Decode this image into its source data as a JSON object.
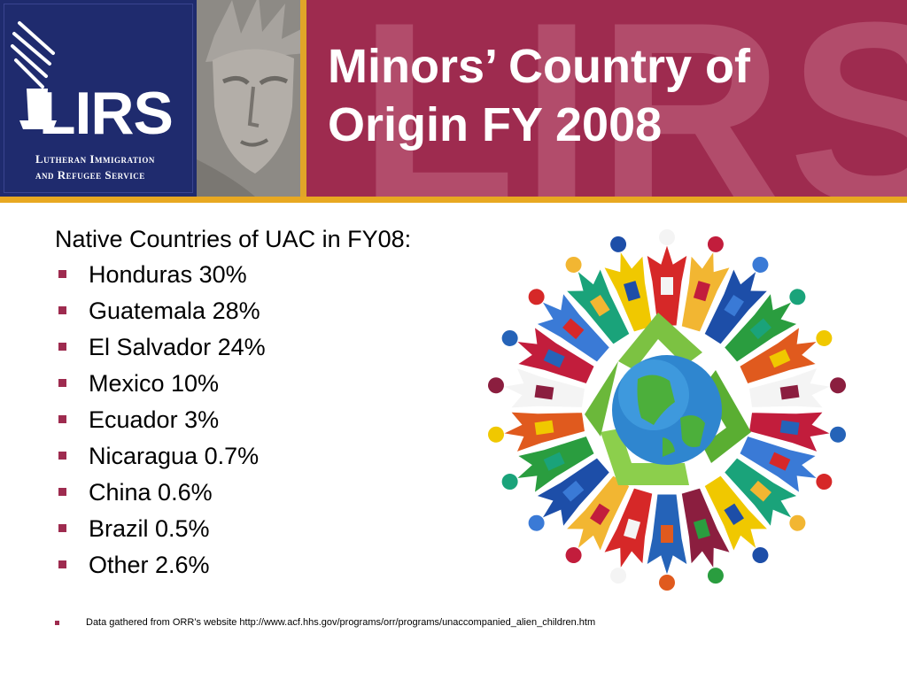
{
  "header": {
    "title_line1": "Minors’ Country of",
    "title_line2": "Origin FY 2008",
    "watermark": "LIRS",
    "colors": {
      "banner": "#9e2b4f",
      "logo_panel": "#1f2b6e",
      "gold": "#e8a821"
    }
  },
  "logo": {
    "wordmark": "LIRS",
    "line1": "Lutheran Immigration",
    "line2": "and Refugee Service"
  },
  "content": {
    "intro": "Native Countries of UAC in FY08:",
    "bullets": [
      "Honduras 30%",
      "Guatemala 28%",
      "El Salvador 24%",
      "Mexico 10%",
      "Ecuador 3%",
      "Nicaragua 0.7%",
      "China 0.6%",
      "Brazil 0.5%",
      "Other 2.6%"
    ]
  },
  "footnote": {
    "text": "Data gathered from ORR’s website http://www.acf.hhs.gov/programs/orr/programs/unaccompanied_alien_children.htm"
  },
  "illustration": {
    "icon": "globe-recycle-people-icon"
  }
}
